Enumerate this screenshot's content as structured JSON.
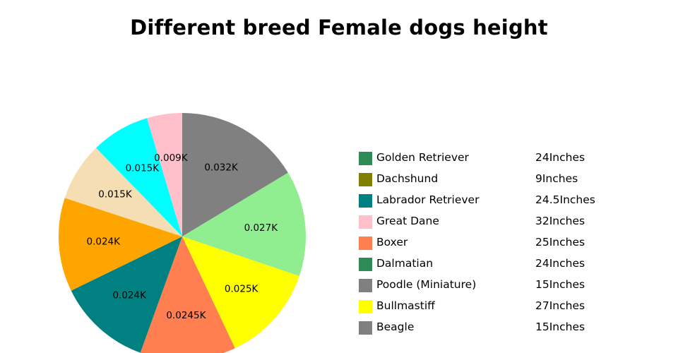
{
  "chart_data": {
    "type": "pie",
    "title": "Different breed Female dogs height",
    "slices": [
      {
        "label": "0.032K",
        "value": 32,
        "color": "#808080"
      },
      {
        "label": "0.027K",
        "value": 27,
        "color": "#90ee90"
      },
      {
        "label": "0.025K",
        "value": 25,
        "color": "#ffff00"
      },
      {
        "label": "0.0245K",
        "value": 24.5,
        "color": "#ff7f50"
      },
      {
        "label": "0.024K",
        "value": 24,
        "color": "#008080"
      },
      {
        "label": "0.024K",
        "value": 24,
        "color": "#ffa500"
      },
      {
        "label": "0.015K",
        "value": 15,
        "color": "#f5deb3"
      },
      {
        "label": "0.015K",
        "value": 15,
        "color": "#00ffff"
      },
      {
        "label": "0.009K",
        "value": 9,
        "color": "#ffc0cb"
      }
    ],
    "legend": [
      {
        "name": "Golden Retriever",
        "value": "24Inches",
        "color": "#2e8b57"
      },
      {
        "name": "Dachshund",
        "value": "9Inches",
        "color": "#808000"
      },
      {
        "name": "Labrador Retriever",
        "value": "24.5Inches",
        "color": "#008080"
      },
      {
        "name": "Great Dane",
        "value": "32Inches",
        "color": "#ffc0cb"
      },
      {
        "name": "Boxer",
        "value": "25Inches",
        "color": "#ff7f50"
      },
      {
        "name": "Dalmatian",
        "value": "24Inches",
        "color": "#2e8b57"
      },
      {
        "name": "Poodle (Miniature)",
        "value": "15Inches",
        "color": "#808080"
      },
      {
        "name": "Bullmastiff",
        "value": "27Inches",
        "color": "#ffff00"
      },
      {
        "name": "Beagle",
        "value": "15Inches",
        "color": "#808080"
      }
    ],
    "legend_position": "right"
  }
}
